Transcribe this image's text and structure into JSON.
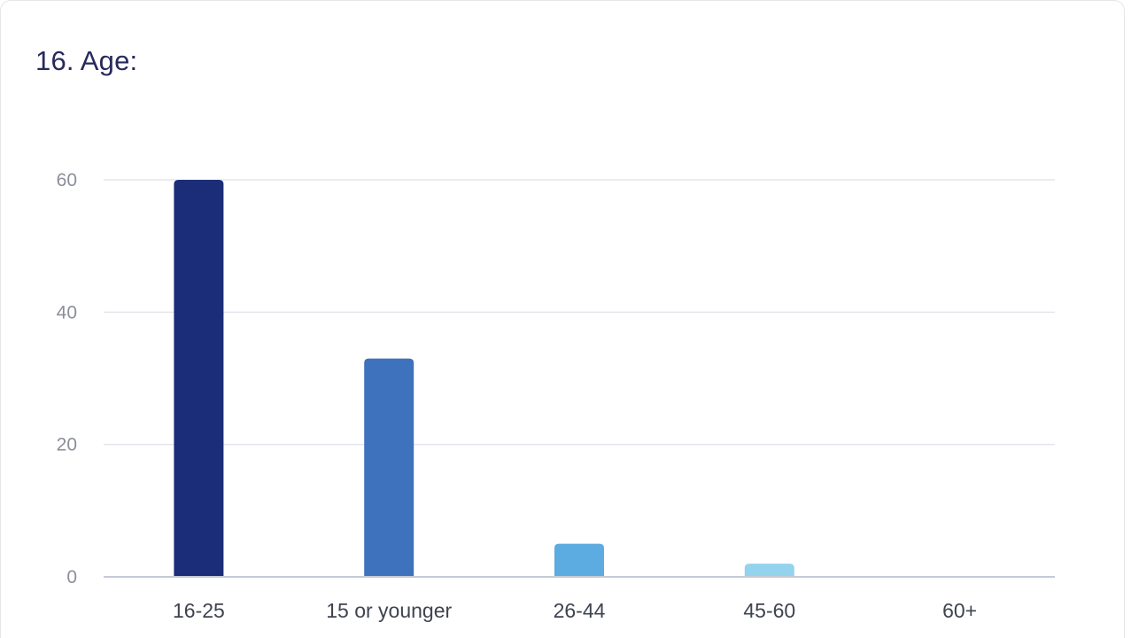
{
  "question_title": "16. Age:",
  "colors": {
    "title": "#262a5c",
    "gridline": "#e3e6ec",
    "axis": "#c5cad6",
    "bars": [
      "#1b2d78",
      "#3f72bd",
      "#5cabe1",
      "#93d3ed",
      "#c9e9f5"
    ]
  },
  "chart_data": {
    "type": "bar",
    "title": "16. Age:",
    "categories": [
      "16-25",
      "15 or younger",
      "26-44",
      "45-60",
      "60+"
    ],
    "values": [
      60,
      33,
      5,
      2,
      0
    ],
    "ylim": [
      0,
      60
    ],
    "yticks": [
      0,
      20,
      40,
      60
    ],
    "xlabel": "",
    "ylabel": "",
    "grid": true,
    "legend": "none"
  }
}
